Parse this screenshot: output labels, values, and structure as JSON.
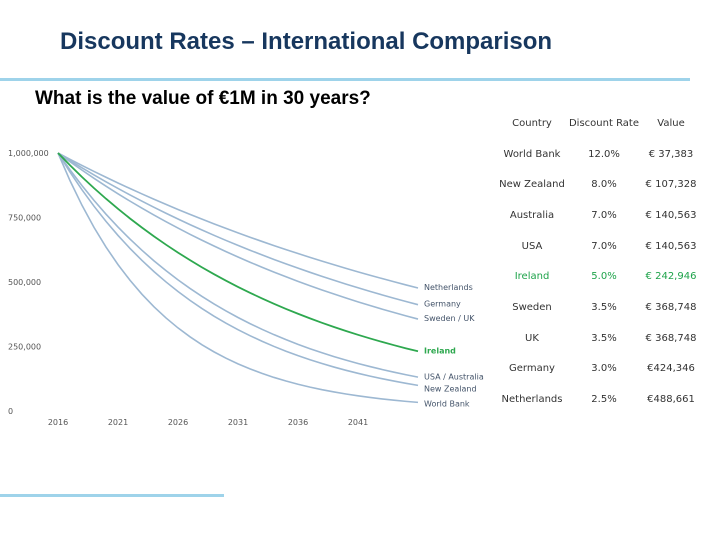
{
  "title": "Discount Rates – International Comparison",
  "question": "What is the value of €1M in 30 years?",
  "table": {
    "headers": [
      "Country",
      "Discount Rate",
      "Value"
    ],
    "rows": [
      {
        "country": "World Bank",
        "rate": "12.0%",
        "value": "€ 37,383",
        "highlight": false
      },
      {
        "country": "New Zealand",
        "rate": "8.0%",
        "value": "€ 107,328",
        "highlight": false
      },
      {
        "country": "Australia",
        "rate": "7.0%",
        "value": "€ 140,563",
        "highlight": false
      },
      {
        "country": "USA",
        "rate": "7.0%",
        "value": "€ 140,563",
        "highlight": false
      },
      {
        "country": "Ireland",
        "rate": "5.0%",
        "value": "€ 242,946",
        "highlight": true
      },
      {
        "country": "Sweden",
        "rate": "3.5%",
        "value": "€ 368,748",
        "highlight": false
      },
      {
        "country": "UK",
        "rate": "3.5%",
        "value": "€ 368,748",
        "highlight": false
      },
      {
        "country": "Germany",
        "rate": "3.0%",
        "value": "€424,346",
        "highlight": false
      },
      {
        "country": "Netherlands",
        "rate": "2.5%",
        "value": "€488,661",
        "highlight": false
      }
    ]
  },
  "chart_data": {
    "type": "line",
    "title": "",
    "xlabel": "",
    "ylabel": "",
    "xlim": [
      2016,
      2046
    ],
    "ylim": [
      0,
      1000000
    ],
    "x_ticks": [
      "2016",
      "2021",
      "2026",
      "2031",
      "2036",
      "2041"
    ],
    "x_tick_values": [
      2016,
      2021,
      2026,
      2031,
      2036,
      2041
    ],
    "y_ticks": [
      "1,000,000",
      "750,000",
      "500,000",
      "250,000",
      "0"
    ],
    "y_tick_values": [
      1000000,
      750000,
      500000,
      250000,
      0
    ],
    "start_year": 2016,
    "years": 30,
    "initial_value": 1000000,
    "series": [
      {
        "name": "Netherlands",
        "rate": 0.025,
        "end_value": 488661,
        "highlight": false
      },
      {
        "name": "Germany",
        "rate": 0.03,
        "end_value": 424346,
        "highlight": false
      },
      {
        "name": "Sweden / UK",
        "rate": 0.035,
        "end_value": 368748,
        "highlight": false
      },
      {
        "name": "Ireland",
        "rate": 0.05,
        "end_value": 242946,
        "highlight": true
      },
      {
        "name": "USA / Australia",
        "rate": 0.07,
        "end_value": 140563,
        "highlight": false
      },
      {
        "name": "New Zealand",
        "rate": 0.08,
        "end_value": 107328,
        "highlight": false
      },
      {
        "name": "World Bank",
        "rate": 0.12,
        "end_value": 37383,
        "highlight": false
      }
    ],
    "colors": {
      "default": "#9db8d2",
      "highlight": "#2ea84f",
      "axis_text": "#555555",
      "label": "#44546a"
    }
  }
}
